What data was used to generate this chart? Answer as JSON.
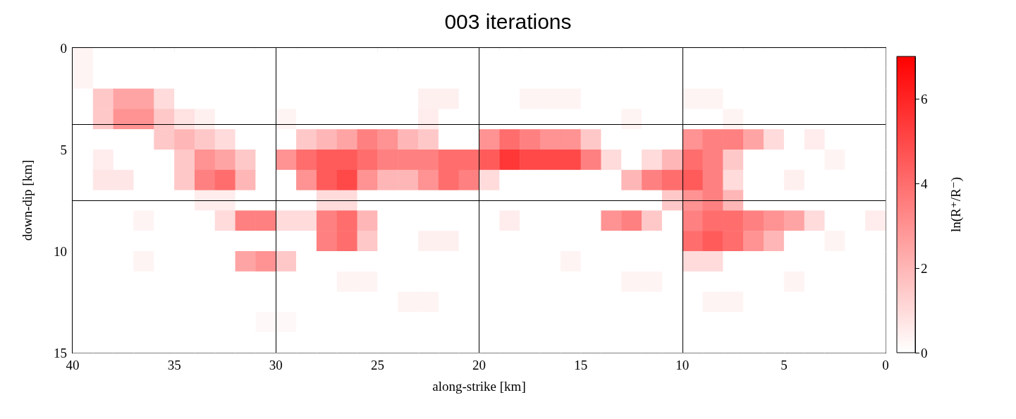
{
  "chart_data": {
    "type": "heatmap",
    "title": "003 iterations",
    "xlabel": "along-strike [km]",
    "ylabel": "down-dip [km]",
    "clabel": "ln(R⁺/R⁻)",
    "color": "#ff0000",
    "x": [
      39.5,
      38.5,
      37.5,
      36.5,
      35.5,
      34.5,
      33.5,
      32.5,
      31.5,
      30.5,
      29.5,
      28.5,
      27.5,
      26.5,
      25.5,
      24.5,
      23.5,
      22.5,
      21.5,
      20.5,
      19.5,
      18.5,
      17.5,
      16.5,
      15.5,
      14.5,
      13.5,
      12.5,
      11.5,
      10.5,
      9.5,
      8.5,
      7.5,
      6.5,
      5.5,
      4.5,
      3.5,
      2.5,
      1.5,
      0.5
    ],
    "y": [
      0.5,
      1.5,
      2.5,
      3.5,
      4.5,
      5.5,
      6.5,
      7.5,
      8.5,
      9.5,
      10.5,
      11.5,
      12.5,
      13.5,
      14.5
    ],
    "xlim": [
      40,
      0
    ],
    "xticks": [
      40,
      35,
      30,
      25,
      20,
      15,
      10,
      5,
      0
    ],
    "ylim": [
      15,
      0
    ],
    "yticks": [
      0,
      5,
      10,
      15
    ],
    "clim": [
      0,
      7
    ],
    "cticks": [
      0,
      2,
      4,
      6
    ],
    "ref_lines": [
      {
        "axis": "x",
        "value": 30,
        "color": "#000000"
      },
      {
        "axis": "x",
        "value": 20,
        "color": "#000000"
      },
      {
        "axis": "x",
        "value": 10,
        "color": "#000000"
      },
      {
        "axis": "y",
        "value": 3.75,
        "color": "#000000"
      },
      {
        "axis": "y",
        "value": 7.5,
        "color": "#000000"
      }
    ],
    "cells": [
      [
        0.3,
        0,
        0,
        0,
        0,
        0,
        0,
        0,
        0,
        0,
        0,
        0,
        0,
        0,
        0,
        0,
        0,
        0,
        0,
        0,
        0,
        0,
        0,
        0,
        0,
        0,
        0,
        0,
        0,
        0,
        0,
        0,
        0,
        0,
        0,
        0,
        0,
        0,
        0,
        0
      ],
      [
        0.3,
        0,
        0,
        0,
        0,
        0,
        0,
        0,
        0,
        0,
        0,
        0,
        0,
        0,
        0,
        0,
        0,
        0,
        0,
        0,
        0,
        0,
        0,
        0,
        0,
        0,
        0,
        0,
        0,
        0,
        0,
        0,
        0,
        0,
        0,
        0,
        0,
        0,
        0,
        0
      ],
      [
        0,
        1.5,
        2.5,
        2.5,
        1,
        0,
        0,
        0,
        0,
        0,
        0,
        0,
        0,
        0,
        0,
        0,
        0,
        0.4,
        0.4,
        0,
        0,
        0,
        0.3,
        0.3,
        0.3,
        0,
        0,
        0,
        0,
        0,
        0.3,
        0.3,
        0,
        0,
        0,
        0,
        0,
        0,
        0,
        0
      ],
      [
        0,
        1.5,
        3,
        3,
        1.5,
        0.8,
        0.4,
        0,
        0,
        0,
        0.3,
        0,
        0,
        0,
        0,
        0,
        0,
        0.5,
        0,
        0,
        0,
        0,
        0,
        0,
        0,
        0,
        0,
        0.3,
        0,
        0,
        0,
        0,
        0.3,
        0,
        0,
        0,
        0,
        0,
        0,
        0
      ],
      [
        0,
        0,
        0,
        0,
        1.5,
        2,
        1.5,
        1,
        0,
        0,
        0,
        1.5,
        2,
        2.5,
        3.5,
        3,
        2,
        1.5,
        0,
        0,
        3,
        4,
        3.5,
        3,
        3,
        1.5,
        0,
        0,
        0,
        0,
        3,
        3.5,
        3.5,
        2.5,
        1,
        0,
        0.5,
        0,
        0,
        0
      ],
      [
        0,
        0.5,
        0,
        0,
        0,
        1.5,
        3,
        2.5,
        1.5,
        0,
        3,
        4,
        4.5,
        4.5,
        4,
        3.5,
        3.5,
        3.5,
        4,
        4,
        4.5,
        5.5,
        5,
        5,
        5,
        3.5,
        1,
        0,
        1,
        2,
        4,
        3.5,
        1.5,
        0,
        0,
        0,
        0,
        0.3,
        0,
        0
      ],
      [
        0,
        0.7,
        0.7,
        0,
        0,
        1.5,
        3.5,
        4,
        2,
        0,
        0,
        3,
        4.5,
        5,
        3,
        2,
        2,
        3,
        4,
        3.5,
        1,
        0,
        0,
        0,
        0,
        0,
        0,
        2,
        3.5,
        4,
        4.5,
        3.5,
        1,
        0,
        0,
        0.4,
        0,
        0,
        0,
        0
      ],
      [
        0,
        0,
        0,
        0,
        0,
        0,
        0.5,
        0.5,
        0,
        0,
        0,
        0,
        1,
        1,
        0,
        0,
        0,
        0,
        0,
        0,
        0,
        0,
        0,
        0,
        0,
        0,
        0,
        0,
        0,
        1.5,
        3,
        3.5,
        2,
        0,
        0,
        0,
        0,
        0,
        0,
        0
      ],
      [
        0,
        0,
        0,
        0.3,
        0,
        0,
        0,
        1,
        3.5,
        3.5,
        1,
        1,
        3.5,
        4,
        2,
        0,
        0,
        0,
        0,
        0,
        0,
        0.5,
        0,
        0,
        0,
        0,
        3,
        3.5,
        1.5,
        0,
        3.5,
        4,
        4,
        3.5,
        3,
        2.5,
        1,
        0,
        0,
        0.5
      ],
      [
        0,
        0,
        0,
        0,
        0,
        0,
        0,
        0,
        0,
        0,
        0,
        0,
        3.5,
        4,
        1.5,
        0,
        0,
        0.4,
        0.4,
        0,
        0,
        0,
        0,
        0,
        0,
        0,
        0,
        0,
        0,
        0,
        4,
        4.5,
        4,
        3,
        2,
        0,
        0,
        0.3,
        0,
        0
      ],
      [
        0,
        0,
        0,
        0.3,
        0,
        0,
        0,
        0,
        2.5,
        3,
        1.5,
        0,
        0,
        0,
        0,
        0,
        0,
        0,
        0,
        0,
        0,
        0,
        0,
        0,
        0.3,
        0,
        0,
        0,
        0,
        0,
        1,
        1,
        0,
        0,
        0,
        0,
        0,
        0,
        0,
        0
      ],
      [
        0,
        0,
        0,
        0,
        0,
        0,
        0,
        0,
        0,
        0,
        0,
        0,
        0,
        0.3,
        0.3,
        0,
        0,
        0,
        0,
        0,
        0,
        0,
        0,
        0,
        0,
        0,
        0,
        0.3,
        0.3,
        0,
        0,
        0,
        0,
        0,
        0,
        0.3,
        0,
        0,
        0,
        0
      ],
      [
        0,
        0,
        0,
        0,
        0,
        0,
        0,
        0,
        0,
        0,
        0,
        0,
        0,
        0,
        0,
        0,
        0.3,
        0.3,
        0,
        0,
        0,
        0,
        0,
        0,
        0,
        0,
        0,
        0,
        0,
        0,
        0,
        0.3,
        0.3,
        0,
        0,
        0,
        0,
        0,
        0,
        0
      ],
      [
        0,
        0,
        0,
        0,
        0,
        0,
        0,
        0,
        0,
        0.2,
        0.2,
        0,
        0,
        0,
        0,
        0,
        0,
        0,
        0,
        0,
        0,
        0,
        0,
        0,
        0,
        0,
        0,
        0,
        0,
        0,
        0,
        0,
        0,
        0,
        0,
        0,
        0,
        0,
        0,
        0
      ],
      [
        0,
        0,
        0,
        0,
        0,
        0,
        0,
        0,
        0,
        0,
        0,
        0,
        0,
        0,
        0,
        0,
        0,
        0,
        0,
        0,
        0,
        0,
        0,
        0,
        0,
        0,
        0,
        0,
        0,
        0,
        0,
        0,
        0,
        0,
        0,
        0,
        0,
        0,
        0,
        0
      ]
    ]
  }
}
